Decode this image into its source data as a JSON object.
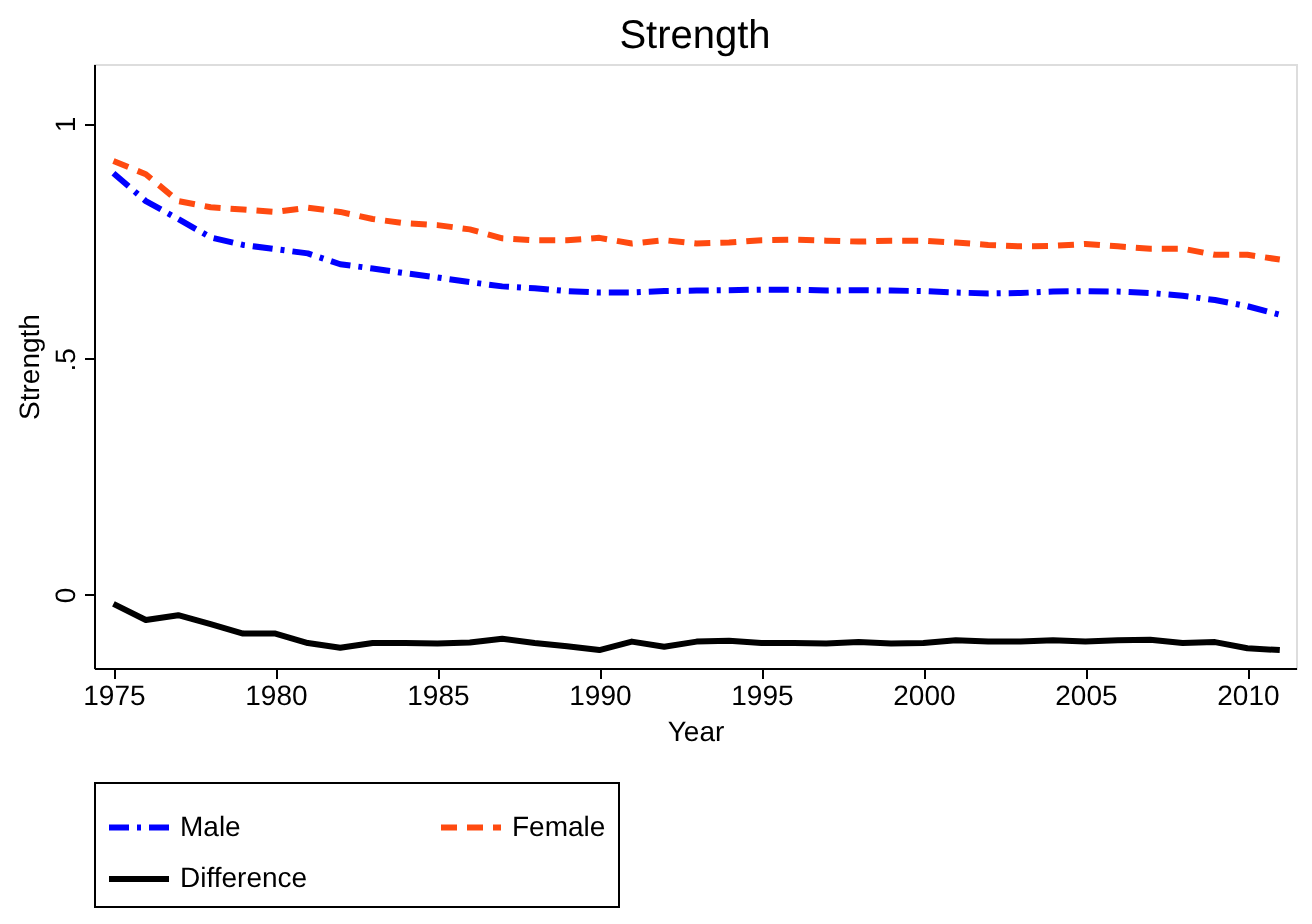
{
  "chart_data": {
    "type": "line",
    "title": "Strength",
    "xlabel": "Year",
    "ylabel": "Strength",
    "x": [
      1975,
      1976,
      1977,
      1978,
      1979,
      1980,
      1981,
      1982,
      1983,
      1984,
      1985,
      1986,
      1987,
      1988,
      1989,
      1990,
      1991,
      1992,
      1993,
      1994,
      1995,
      1996,
      1997,
      1998,
      1999,
      2000,
      2001,
      2002,
      2003,
      2004,
      2005,
      2006,
      2007,
      2008,
      2009,
      2010,
      2011
    ],
    "series": [
      {
        "name": "Male",
        "color": "#0000ff",
        "line_style": "dashdot",
        "values": [
          0.894,
          0.835,
          0.797,
          0.758,
          0.742,
          0.733,
          0.724,
          0.701,
          0.692,
          0.682,
          0.673,
          0.663,
          0.654,
          0.65,
          0.644,
          0.641,
          0.641,
          0.644,
          0.645,
          0.646,
          0.647,
          0.647,
          0.645,
          0.646,
          0.645,
          0.644,
          0.641,
          0.639,
          0.64,
          0.643,
          0.644,
          0.643,
          0.64,
          0.634,
          0.625,
          0.612,
          0.594
        ]
      },
      {
        "name": "Female",
        "color": "#ff4a10",
        "line_style": "dashed",
        "values": [
          0.92,
          0.892,
          0.835,
          0.822,
          0.817,
          0.812,
          0.821,
          0.812,
          0.797,
          0.788,
          0.784,
          0.775,
          0.756,
          0.752,
          0.752,
          0.757,
          0.745,
          0.752,
          0.745,
          0.747,
          0.752,
          0.753,
          0.751,
          0.749,
          0.751,
          0.751,
          0.747,
          0.742,
          0.739,
          0.74,
          0.744,
          0.739,
          0.734,
          0.734,
          0.721,
          0.721,
          0.711
        ]
      },
      {
        "name": "Difference",
        "color": "#000000",
        "line_style": "solid",
        "values": [
          -0.02,
          -0.054,
          -0.044,
          -0.063,
          -0.083,
          -0.083,
          -0.103,
          -0.113,
          -0.103,
          -0.103,
          -0.104,
          -0.102,
          -0.094,
          -0.103,
          -0.11,
          -0.118,
          -0.1,
          -0.111,
          -0.1,
          -0.098,
          -0.103,
          -0.103,
          -0.104,
          -0.101,
          -0.104,
          -0.103,
          -0.097,
          -0.1,
          -0.1,
          -0.097,
          -0.1,
          -0.097,
          -0.096,
          -0.103,
          -0.101,
          -0.114,
          -0.118
        ]
      }
    ],
    "xlim": [
      1974.4,
      2011.5
    ],
    "xticks": [
      1975,
      1980,
      1985,
      1990,
      1995,
      2000,
      2005,
      2010
    ],
    "ylim": [
      -0.156,
      1.126
    ],
    "yticks": [
      0,
      {
        "value": 0.5,
        "label": ".5"
      },
      1
    ],
    "grid": false,
    "legend": "bottom",
    "marker": "none"
  }
}
